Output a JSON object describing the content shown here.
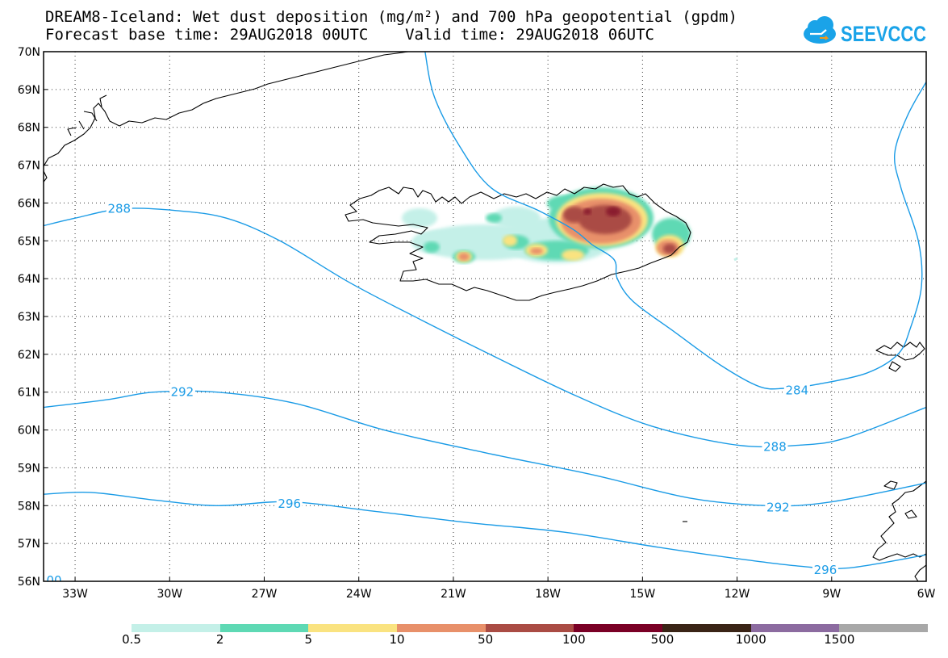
{
  "title_line1": "DREAM8-Iceland: Wet dust deposition (mg/m²) and 700 hPa geopotential (gpdm)",
  "title_line2": "Forecast base time: 29AUG2018 00UTC    Valid time: 29AUG2018 06UTC",
  "logo_text": "SEEVCCC",
  "map": {
    "lon_range": [
      -34,
      -6
    ],
    "lat_range": [
      56,
      70
    ],
    "lon_ticks": [
      {
        "value": -33,
        "label": "33W"
      },
      {
        "value": -30,
        "label": "30W"
      },
      {
        "value": -27,
        "label": "27W"
      },
      {
        "value": -24,
        "label": "24W"
      },
      {
        "value": -21,
        "label": "21W"
      },
      {
        "value": -18,
        "label": "18W"
      },
      {
        "value": -15,
        "label": "15W"
      },
      {
        "value": -12,
        "label": "12W"
      },
      {
        "value": -9,
        "label": "9W"
      },
      {
        "value": -6,
        "label": "6W"
      }
    ],
    "lat_ticks": [
      {
        "value": 70,
        "label": "70N"
      },
      {
        "value": 69,
        "label": "69N"
      },
      {
        "value": 68,
        "label": "68N"
      },
      {
        "value": 67,
        "label": "67N"
      },
      {
        "value": 66,
        "label": "66N"
      },
      {
        "value": 65,
        "label": "65N"
      },
      {
        "value": 64,
        "label": "64N"
      },
      {
        "value": 63,
        "label": "63N"
      },
      {
        "value": 62,
        "label": "62N"
      },
      {
        "value": 61,
        "label": "61N"
      },
      {
        "value": 60,
        "label": "60N"
      },
      {
        "value": 59,
        "label": "59N"
      },
      {
        "value": 58,
        "label": "58N"
      },
      {
        "value": 57,
        "label": "57N"
      },
      {
        "value": 56,
        "label": "56N"
      }
    ],
    "contour_color": "#1a9be6",
    "contours": [
      {
        "level": "284",
        "points": [
          [
            -21.9,
            70
          ],
          [
            -21.6,
            68.8
          ],
          [
            -20.8,
            67.5
          ],
          [
            -19.8,
            66.4
          ],
          [
            -18.3,
            65.8
          ],
          [
            -17.2,
            65.3
          ],
          [
            -16.6,
            64.9
          ],
          [
            -15.9,
            64.5
          ],
          [
            -15.8,
            64.0
          ],
          [
            -15.3,
            63.4
          ],
          [
            -14.0,
            62.6
          ],
          [
            -12.5,
            61.7
          ],
          [
            -11.3,
            61.15
          ],
          [
            -10.5,
            61.1
          ],
          [
            -9.5,
            61.2
          ],
          [
            -7.9,
            61.5
          ],
          [
            -6.9,
            62.0
          ],
          [
            -6.5,
            62.7
          ],
          [
            -6.15,
            63.8
          ],
          [
            -6.25,
            65.0
          ],
          [
            -6.8,
            66.4
          ],
          [
            -7.0,
            67.3
          ],
          [
            -6.6,
            68.3
          ],
          [
            -6.0,
            69.2
          ]
        ],
        "label_at": [
          -10.1,
          61.05
        ]
      },
      {
        "level": "288",
        "points": [
          [
            -34,
            65.4
          ],
          [
            -33,
            65.6
          ],
          [
            -31.5,
            65.85
          ],
          [
            -29.8,
            65.8
          ],
          [
            -28.2,
            65.6
          ],
          [
            -26.5,
            65.0
          ],
          [
            -24.3,
            63.9
          ],
          [
            -22.0,
            62.9
          ],
          [
            -19.6,
            61.9
          ],
          [
            -17.1,
            60.9
          ],
          [
            -14.7,
            60.1
          ],
          [
            -12.0,
            59.6
          ],
          [
            -10.0,
            59.6
          ],
          [
            -8.5,
            59.8
          ],
          [
            -6.0,
            60.6
          ]
        ],
        "label_at": [
          -10.8,
          59.55
        ]
      },
      {
        "level": "292",
        "points": [
          [
            -34,
            60.6
          ],
          [
            -32,
            60.8
          ],
          [
            -30.5,
            61.0
          ],
          [
            -28.5,
            61.0
          ],
          [
            -26.0,
            60.7
          ],
          [
            -23.2,
            60.0
          ],
          [
            -20.0,
            59.4
          ],
          [
            -16.5,
            58.8
          ],
          [
            -13.5,
            58.2
          ],
          [
            -11.0,
            58.0
          ],
          [
            -9.0,
            58.1
          ],
          [
            -6.0,
            58.6
          ]
        ],
        "label_at": [
          -10.7,
          57.95
        ]
      },
      {
        "level": "296",
        "points": [
          [
            -34,
            58.3
          ],
          [
            -32.5,
            58.35
          ],
          [
            -30.5,
            58.15
          ],
          [
            -28.5,
            58.0
          ],
          [
            -26.2,
            58.1
          ],
          [
            -23.5,
            57.85
          ],
          [
            -20.5,
            57.55
          ],
          [
            -17.5,
            57.3
          ],
          [
            -14.5,
            56.9
          ],
          [
            -12.0,
            56.6
          ],
          [
            -10.0,
            56.4
          ],
          [
            -8.5,
            56.35
          ],
          [
            -6.0,
            56.7
          ]
        ],
        "label_at": [
          -9.2,
          56.3
        ]
      }
    ],
    "partial_label": "00",
    "dust_colors": [
      "#c4f0e8",
      "#5ed9b4",
      "#fae380",
      "#e8906a",
      "#aa4c44",
      "#8a1a2e"
    ]
  },
  "legend": {
    "colors": [
      "#c4f0e8",
      "#5ed9b4",
      "#fae380",
      "#e8906a",
      "#aa4c44",
      "#7a0026",
      "#3a2416",
      "#8c6ba0",
      "#a8a8a8"
    ],
    "labels": [
      "0.5",
      "2",
      "5",
      "10",
      "50",
      "100",
      "500",
      "1000",
      "1500"
    ]
  }
}
